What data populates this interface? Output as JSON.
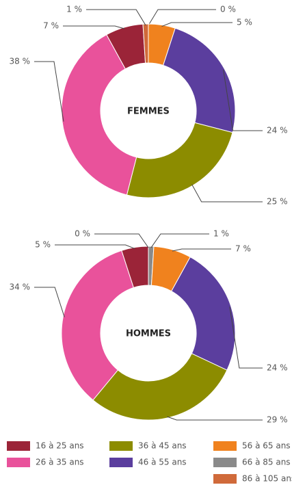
{
  "chart_data": [
    {
      "type": "donut",
      "title": "FEMMES",
      "categories": [
        "66 à 85 ans",
        "56 à 65 ans",
        "46 à 55 ans",
        "36 à 45 ans",
        "26 à 35 ans",
        "16 à 25 ans",
        "86 à 105 ans"
      ],
      "values": [
        0,
        5,
        24,
        25,
        38,
        7,
        1
      ],
      "value_labels": [
        "0 %",
        "5 %",
        "24 %",
        "25 %",
        "38 %",
        "7 %",
        "1 %"
      ],
      "colors": [
        "#8a8a8a",
        "#f0821e",
        "#5b3e9e",
        "#8c8c00",
        "#e9529b",
        "#9b2438",
        "#d06a3a"
      ]
    },
    {
      "type": "donut",
      "title": "HOMMES",
      "categories": [
        "66 à 85 ans",
        "56 à 65 ans",
        "46 à 55 ans",
        "36 à 45 ans",
        "26 à 35 ans",
        "16 à 25 ans",
        "86 à 105 ans"
      ],
      "values": [
        1,
        7,
        24,
        29,
        34,
        5,
        0
      ],
      "value_labels": [
        "1 %",
        "7 %",
        "24 %",
        "29 %",
        "34 %",
        "5 %",
        "0 %"
      ],
      "colors": [
        "#8a8a8a",
        "#f0821e",
        "#5b3e9e",
        "#8c8c00",
        "#e9529b",
        "#9b2438",
        "#d06a3a"
      ]
    }
  ]
}
